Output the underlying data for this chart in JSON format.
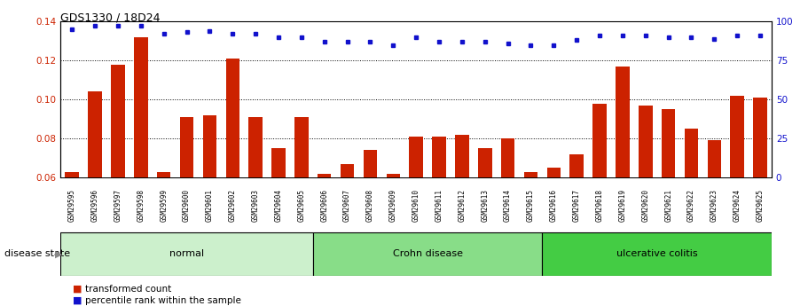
{
  "title": "GDS1330 / 18D24",
  "samples": [
    "GSM29595",
    "GSM29596",
    "GSM29597",
    "GSM29598",
    "GSM29599",
    "GSM29600",
    "GSM29601",
    "GSM29602",
    "GSM29603",
    "GSM29604",
    "GSM29605",
    "GSM29606",
    "GSM29607",
    "GSM29608",
    "GSM29609",
    "GSM29610",
    "GSM29611",
    "GSM29612",
    "GSM29613",
    "GSM29614",
    "GSM29615",
    "GSM29616",
    "GSM29617",
    "GSM29618",
    "GSM29619",
    "GSM29620",
    "GSM29621",
    "GSM29622",
    "GSM29623",
    "GSM29624",
    "GSM29625"
  ],
  "red_bars": [
    0.063,
    0.104,
    0.118,
    0.132,
    0.063,
    0.091,
    0.092,
    0.121,
    0.091,
    0.075,
    0.091,
    0.062,
    0.067,
    0.074,
    0.062,
    0.081,
    0.081,
    0.082,
    0.075,
    0.08,
    0.063,
    0.065,
    0.072,
    0.098,
    0.117,
    0.097,
    0.095,
    0.085,
    0.079,
    0.102,
    0.101
  ],
  "blue_dots": [
    95,
    97,
    97,
    97,
    92,
    93,
    94,
    92,
    92,
    90,
    90,
    87,
    87,
    87,
    85,
    90,
    87,
    87,
    87,
    86,
    85,
    85,
    88,
    91,
    91,
    91,
    90,
    90,
    89,
    91,
    91
  ],
  "groups": [
    {
      "label": "normal",
      "start": 0,
      "end": 10,
      "color": "#ccf0cc"
    },
    {
      "label": "Crohn disease",
      "start": 11,
      "end": 20,
      "color": "#88dd88"
    },
    {
      "label": "ulcerative colitis",
      "start": 21,
      "end": 30,
      "color": "#44cc44"
    }
  ],
  "ylim_left": [
    0.06,
    0.14
  ],
  "ylim_right": [
    0,
    100
  ],
  "yticks_left": [
    0.06,
    0.08,
    0.1,
    0.12,
    0.14
  ],
  "yticks_right": [
    0,
    25,
    50,
    75,
    100
  ],
  "bar_color": "#cc2200",
  "dot_color": "#1111cc",
  "bg_color": "#ffffff",
  "plot_bg": "#ffffff"
}
